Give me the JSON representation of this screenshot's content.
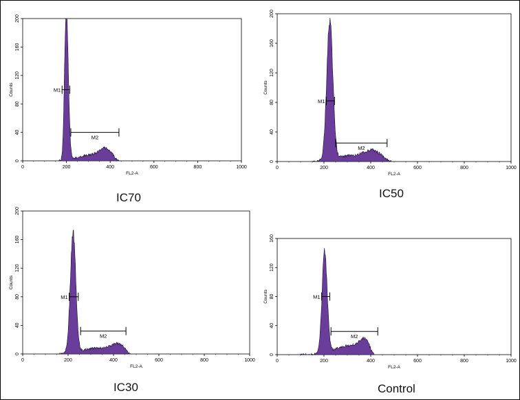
{
  "chart_data": [
    {
      "type": "histogram",
      "label": "IC70",
      "xlabel": "FL2-A",
      "ylabel": "Counts",
      "xlim": [
        0,
        1000
      ],
      "ylim": [
        0,
        200
      ],
      "x_ticks": [
        "0",
        "200",
        "400",
        "600",
        "800",
        "1000"
      ],
      "y_ticks": [
        "0",
        "40",
        "80",
        "120",
        "160",
        "200"
      ],
      "peaks": [
        {
          "center": 200,
          "height": 205,
          "width": 9
        },
        {
          "center": 380,
          "height": 14,
          "width": 28
        },
        {
          "center": 310,
          "height": 8,
          "width": 60
        }
      ],
      "range_start": 165,
      "range_end": 440,
      "markers": [
        {
          "name": "M1",
          "from": 180,
          "to": 215,
          "level": 100
        },
        {
          "name": "M2",
          "from": 220,
          "to": 440,
          "level": 40
        }
      ]
    },
    {
      "type": "histogram",
      "label": "IC50",
      "xlabel": "FL2-A",
      "ylabel": "Counts",
      "xlim": [
        0,
        1000
      ],
      "ylim": [
        0,
        200
      ],
      "x_ticks": [
        "0",
        "200",
        "400",
        "600",
        "800",
        "1000"
      ],
      "y_ticks": [
        "0",
        "40",
        "80",
        "120",
        "160",
        "200"
      ],
      "peaks": [
        {
          "center": 225,
          "height": 188,
          "width": 13
        },
        {
          "center": 410,
          "height": 12,
          "width": 35
        },
        {
          "center": 320,
          "height": 8,
          "width": 70
        }
      ],
      "range_start": 150,
      "range_end": 490,
      "markers": [
        {
          "name": "M1",
          "from": 210,
          "to": 245,
          "level": 82
        },
        {
          "name": "M2",
          "from": 250,
          "to": 470,
          "level": 25
        }
      ]
    },
    {
      "type": "histogram",
      "label": "IC30",
      "xlabel": "FL2-A",
      "ylabel": "Counts",
      "xlim": [
        0,
        1000
      ],
      "ylim": [
        0,
        200
      ],
      "x_ticks": [
        "0",
        "200",
        "400",
        "600",
        "800",
        "1000"
      ],
      "y_ticks": [
        "0",
        "40",
        "80",
        "120",
        "160",
        "200"
      ],
      "peaks": [
        {
          "center": 222,
          "height": 168,
          "width": 12
        },
        {
          "center": 420,
          "height": 11,
          "width": 30
        },
        {
          "center": 330,
          "height": 8,
          "width": 70
        }
      ],
      "range_start": 160,
      "range_end": 475,
      "markers": [
        {
          "name": "M1",
          "from": 205,
          "to": 245,
          "level": 80
        },
        {
          "name": "M2",
          "from": 255,
          "to": 455,
          "level": 32
        }
      ]
    },
    {
      "type": "histogram",
      "label": "Control",
      "xlabel": "FL2-A",
      "ylabel": "Counts",
      "xlim": [
        0,
        1000
      ],
      "ylim": [
        0,
        160
      ],
      "x_ticks": [
        "0",
        "200",
        "400",
        "600",
        "800",
        "1000"
      ],
      "y_ticks": [
        "0",
        "40",
        "80",
        "120",
        "160"
      ],
      "peaks": [
        {
          "center": 203,
          "height": 140,
          "width": 11
        },
        {
          "center": 375,
          "height": 18,
          "width": 25
        },
        {
          "center": 300,
          "height": 12,
          "width": 55
        }
      ],
      "range_start": 100,
      "range_end": 415,
      "markers": [
        {
          "name": "M1",
          "from": 190,
          "to": 225,
          "level": 80
        },
        {
          "name": "M2",
          "from": 230,
          "to": 430,
          "level": 32
        }
      ]
    }
  ],
  "colors": {
    "fill": "#6a3d9a",
    "edge": "#1a1030",
    "axis": "#000000"
  }
}
